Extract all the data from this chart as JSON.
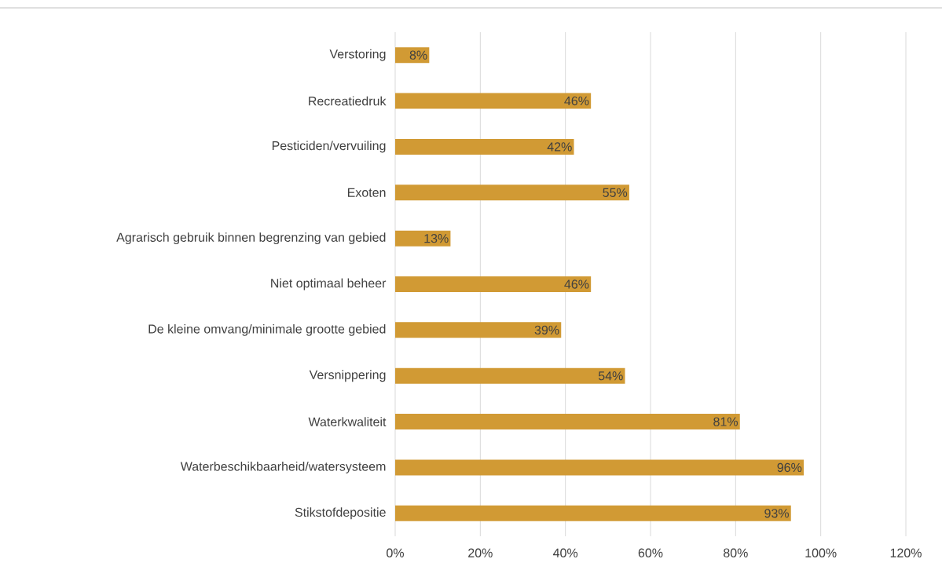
{
  "chart_data": {
    "type": "bar",
    "orientation": "horizontal",
    "categories": [
      "Verstoring",
      "Recreatiedruk",
      "Pesticiden/vervuiling",
      "Exoten",
      "Agrarisch gebruik binnen begrenzing van gebied",
      "Niet optimaal beheer",
      "De kleine omvang/minimale grootte gebied",
      "Versnippering",
      "Waterkwaliteit",
      "Waterbeschikbaarheid/watersysteem",
      "Stikstofdepositie"
    ],
    "values": [
      8,
      46,
      42,
      55,
      13,
      46,
      39,
      54,
      81,
      96,
      93
    ],
    "value_labels": [
      "8%",
      "46%",
      "42%",
      "55%",
      "13%",
      "46%",
      "39%",
      "54%",
      "81%",
      "96%",
      "93%"
    ],
    "color": "#d19a34",
    "xlim": [
      0,
      120
    ],
    "xticks": [
      {
        "value": 0,
        "label": "0%"
      },
      {
        "value": 20,
        "label": "20%"
      },
      {
        "value": 40,
        "label": "40%"
      },
      {
        "value": 60,
        "label": "60%"
      },
      {
        "value": 80,
        "label": "80%"
      },
      {
        "value": 100,
        "label": "100%"
      },
      {
        "value": 120,
        "label": "120%"
      }
    ],
    "grid": "x"
  }
}
